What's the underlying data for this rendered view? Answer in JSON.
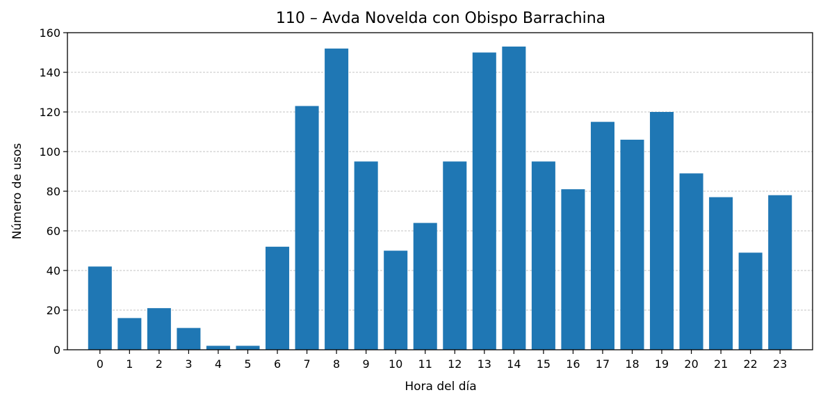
{
  "chart_data": {
    "type": "bar",
    "title": "110 – Avda Novelda con Obispo Barrachina",
    "xlabel": "Hora del día",
    "ylabel": "Número de usos",
    "categories": [
      "0",
      "1",
      "2",
      "3",
      "4",
      "5",
      "6",
      "7",
      "8",
      "9",
      "10",
      "11",
      "12",
      "13",
      "14",
      "15",
      "16",
      "17",
      "18",
      "19",
      "20",
      "21",
      "22",
      "23"
    ],
    "values": [
      42,
      16,
      21,
      11,
      2,
      2,
      52,
      123,
      152,
      95,
      50,
      64,
      95,
      150,
      153,
      95,
      81,
      115,
      106,
      120,
      89,
      77,
      49,
      78
    ],
    "ylim": [
      0,
      160
    ],
    "yticks": [
      0,
      20,
      40,
      60,
      80,
      100,
      120,
      140,
      160
    ],
    "grid": "y-dashed",
    "bar_color": "#1f77b4",
    "legend": "none"
  }
}
